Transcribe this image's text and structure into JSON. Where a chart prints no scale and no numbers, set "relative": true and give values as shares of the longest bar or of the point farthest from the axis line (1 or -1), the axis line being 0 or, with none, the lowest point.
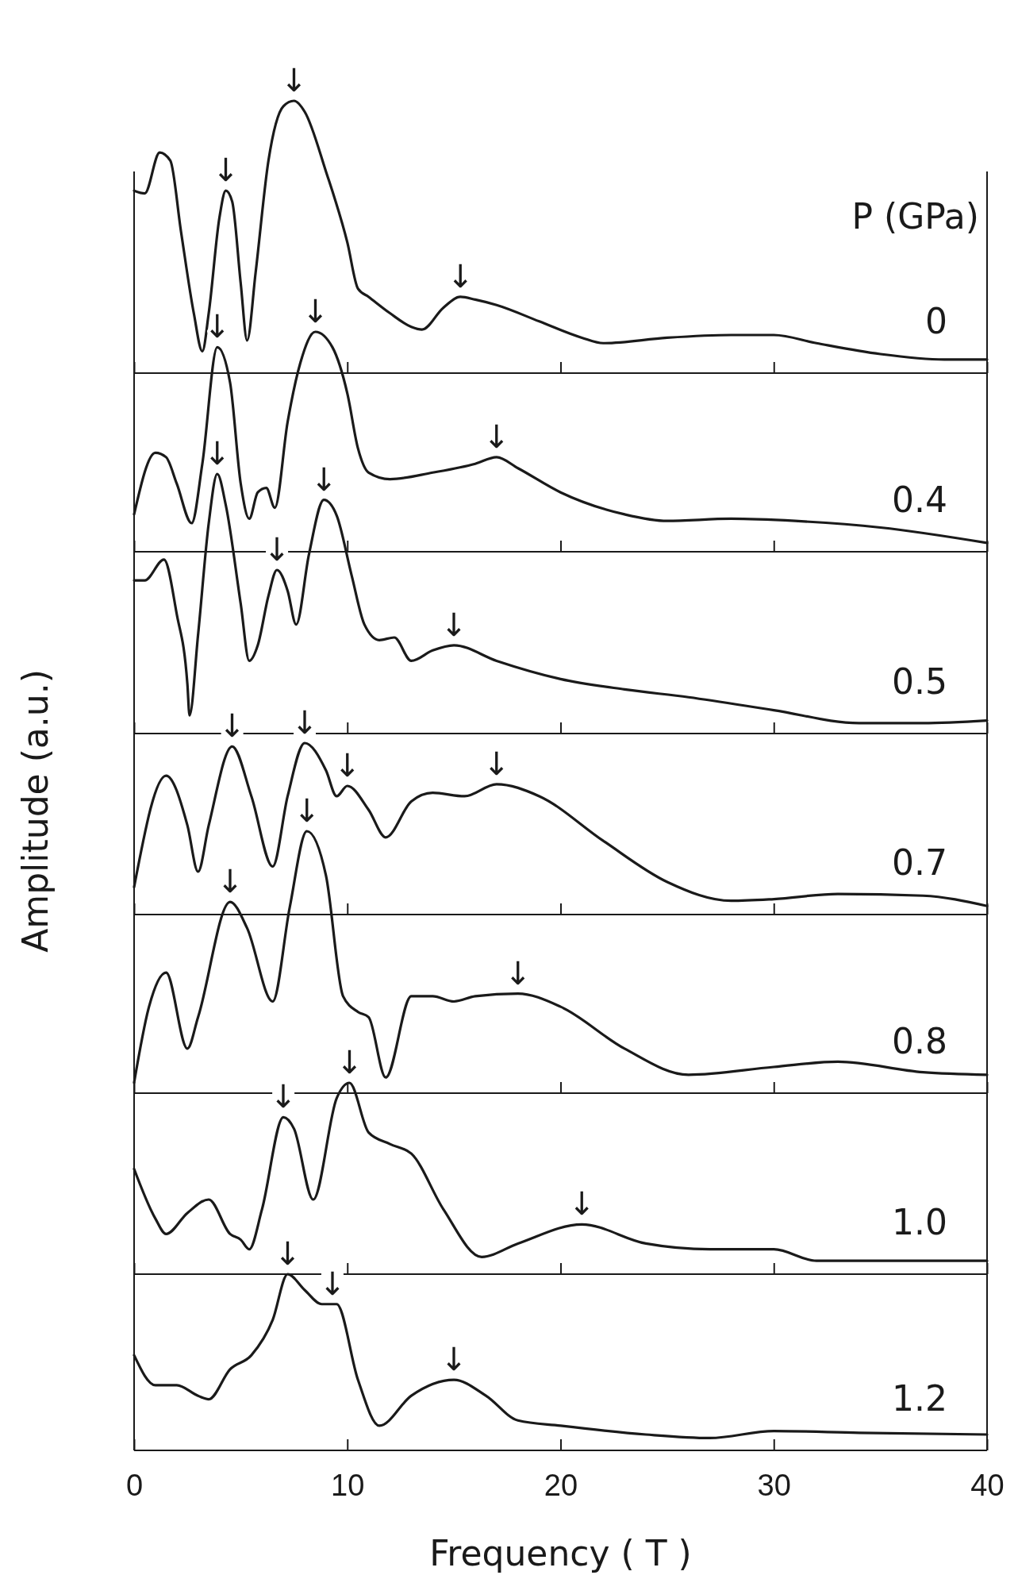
{
  "chart_data": [
    {
      "type": "line",
      "relative": true,
      "legend_title": "P (GPa)",
      "xlim": [
        0,
        40
      ],
      "xticks": [
        0,
        10,
        20,
        30,
        40
      ],
      "tick_labels": false,
      "marker": "none",
      "line_style": "solid",
      "series": [
        {
          "name": "0",
          "color": "#1a1a1a",
          "x": [
            0,
            0.5,
            1.2,
            1.7,
            2.2,
            2.8,
            3.2,
            3.5,
            4.0,
            4.3,
            4.6,
            5.0,
            5.3,
            5.7,
            6.3,
            7.0,
            7.5,
            8.0,
            9,
            10,
            10.5,
            11,
            12,
            13,
            13.5,
            14.5,
            15.3,
            16,
            17,
            19,
            21,
            22,
            25,
            28,
            30,
            32,
            35,
            38,
            40
          ],
          "values": [
            0.67,
            0.66,
            0.81,
            0.78,
            0.52,
            0.22,
            0.08,
            0.22,
            0.57,
            0.67,
            0.63,
            0.33,
            0.12,
            0.37,
            0.78,
            0.98,
            1,
            0.96,
            0.74,
            0.48,
            0.31,
            0.28,
            0.22,
            0.17,
            0.16,
            0.24,
            0.28,
            0.27,
            0.25,
            0.19,
            0.13,
            0.11,
            0.13,
            0.14,
            0.14,
            0.11,
            0.07,
            0.05,
            0.05
          ]
        }
      ],
      "annotations": [
        {
          "text": "↓",
          "x": 4.3,
          "y": 0.67
        },
        {
          "text": "↓",
          "x": 7.5,
          "y": 1
        },
        {
          "text": "↓",
          "x": 15.3,
          "y": 0.28
        }
      ]
    },
    {
      "type": "line",
      "relative": true,
      "xlim": [
        0,
        40
      ],
      "xticks": [
        0,
        10,
        20,
        30,
        40
      ],
      "tick_labels": false,
      "marker": "none",
      "line_style": "solid",
      "series": [
        {
          "name": "0.4",
          "color": "#1a1a1a",
          "x": [
            0,
            1,
            1.5,
            2,
            2.7,
            3.2,
            3.9,
            4.5,
            5.0,
            5.4,
            5.8,
            6.2,
            6.6,
            7.2,
            7.8,
            8.5,
            9.3,
            10,
            10.5,
            11,
            12,
            14,
            16,
            17,
            18,
            20,
            23,
            25,
            28,
            31,
            35,
            40
          ],
          "values": [
            0.17,
            0.45,
            0.43,
            0.31,
            0.13,
            0.4,
            0.93,
            0.77,
            0.31,
            0.15,
            0.27,
            0.29,
            0.2,
            0.59,
            0.86,
            1,
            0.93,
            0.72,
            0.47,
            0.36,
            0.33,
            0.36,
            0.4,
            0.43,
            0.38,
            0.27,
            0.17,
            0.14,
            0.15,
            0.14,
            0.11,
            0.04
          ]
        }
      ],
      "annotations": [
        {
          "text": "↓",
          "x": 3.9,
          "y": 0.93
        },
        {
          "text": "↓",
          "x": 8.5,
          "y": 1
        },
        {
          "text": "↓",
          "x": 17,
          "y": 0.43
        }
      ]
    },
    {
      "type": "line",
      "relative": true,
      "xlim": [
        0,
        40
      ],
      "xticks": [
        0,
        10,
        20,
        30,
        40
      ],
      "tick_labels": false,
      "marker": "none",
      "line_style": "solid",
      "series": [
        {
          "name": "0.5",
          "color": "#1a1a1a",
          "x": [
            0,
            0.5,
            1.4,
            2,
            2.5,
            2.6,
            3,
            3.5,
            3.9,
            4.3,
            5,
            5.4,
            5.8,
            6.3,
            6.7,
            7.2,
            7.6,
            8.2,
            8.9,
            9.5,
            10.2,
            10.8,
            11.5,
            12.2,
            13,
            14,
            15,
            17,
            20,
            23,
            26,
            30,
            34,
            37,
            40
          ],
          "values": [
            0.59,
            0.59,
            0.67,
            0.46,
            0.19,
            0.07,
            0.38,
            0.81,
            1,
            0.88,
            0.5,
            0.28,
            0.34,
            0.53,
            0.63,
            0.55,
            0.42,
            0.69,
            0.9,
            0.84,
            0.61,
            0.42,
            0.36,
            0.37,
            0.28,
            0.32,
            0.34,
            0.28,
            0.21,
            0.17,
            0.14,
            0.09,
            0.04,
            0.04,
            0.05
          ]
        }
      ],
      "annotations": [
        {
          "text": "↓",
          "x": 3.9,
          "y": 1
        },
        {
          "text": "↓",
          "x": 6.7,
          "y": 0.63
        },
        {
          "text": "↓",
          "x": 8.9,
          "y": 0.9
        },
        {
          "text": "↓",
          "x": 15,
          "y": 0.34
        }
      ]
    },
    {
      "type": "line",
      "relative": true,
      "ylabel": "Amplitude (a.u.)",
      "xlim": [
        0,
        40
      ],
      "xticks": [
        0,
        10,
        20,
        30,
        40
      ],
      "tick_labels": false,
      "marker": "none",
      "line_style": "solid",
      "series": [
        {
          "name": "0.7",
          "color": "#1a1a1a",
          "x": [
            0,
            1.5,
            2.5,
            3,
            3.5,
            4.6,
            5.5,
            6.5,
            7.2,
            8.0,
            9,
            9.5,
            10,
            11,
            11.8,
            13,
            14,
            15.5,
            17,
            19,
            22,
            25,
            28,
            30,
            33,
            37,
            40
          ],
          "values": [
            0.16,
            0.81,
            0.52,
            0.25,
            0.52,
            0.98,
            0.69,
            0.28,
            0.69,
            1,
            0.84,
            0.69,
            0.75,
            0.61,
            0.45,
            0.66,
            0.71,
            0.69,
            0.76,
            0.69,
            0.43,
            0.19,
            0.08,
            0.09,
            0.12,
            0.11,
            0.05
          ]
        }
      ],
      "annotations": [
        {
          "text": "↓",
          "x": 4.6,
          "y": 0.98
        },
        {
          "text": "↓",
          "x": 8,
          "y": 1
        },
        {
          "text": "↓",
          "x": 10,
          "y": 0.75
        },
        {
          "text": "↓",
          "x": 17,
          "y": 0.76
        }
      ]
    },
    {
      "type": "line",
      "relative": true,
      "xlim": [
        0,
        40
      ],
      "xticks": [
        0,
        10,
        20,
        30,
        40
      ],
      "tick_labels": false,
      "marker": "none",
      "line_style": "solid",
      "series": [
        {
          "name": "0.8",
          "color": "#1a1a1a",
          "x": [
            0,
            0.7,
            1.5,
            2.5,
            3,
            4.5,
            5.3,
            6.5,
            7.3,
            8.1,
            9,
            9.8,
            10.5,
            11,
            11.8,
            13,
            14,
            15,
            16,
            18,
            20,
            23,
            26,
            30,
            33,
            37,
            40
          ],
          "values": [
            0.04,
            0.33,
            0.46,
            0.17,
            0.29,
            0.73,
            0.63,
            0.35,
            0.71,
            1,
            0.83,
            0.37,
            0.31,
            0.29,
            0.06,
            0.37,
            0.37,
            0.35,
            0.37,
            0.38,
            0.33,
            0.17,
            0.07,
            0.1,
            0.12,
            0.08,
            0.07
          ]
        }
      ],
      "annotations": [
        {
          "text": "↓",
          "x": 4.5,
          "y": 0.73
        },
        {
          "text": "↓",
          "x": 8.1,
          "y": 1
        },
        {
          "text": "↓",
          "x": 18,
          "y": 0.38
        }
      ]
    },
    {
      "type": "line",
      "relative": true,
      "xlim": [
        0,
        40
      ],
      "xticks": [
        0,
        10,
        20,
        30,
        40
      ],
      "tick_labels": false,
      "marker": "none",
      "line_style": "solid",
      "series": [
        {
          "name": "1.0",
          "color": "#1a1a1a",
          "x": [
            0,
            1,
            1.5,
            2.5,
            3.5,
            4.5,
            5,
            5.4,
            6,
            7,
            7.5,
            8.4,
            9.5,
            10.1,
            11,
            12,
            13,
            14.5,
            16.3,
            18,
            21,
            24,
            27,
            30,
            32,
            36,
            40
          ],
          "values": [
            0.55,
            0.29,
            0.21,
            0.32,
            0.39,
            0.21,
            0.18,
            0.13,
            0.34,
            0.82,
            0.76,
            0.39,
            0.92,
            1,
            0.74,
            0.68,
            0.63,
            0.34,
            0.09,
            0.16,
            0.26,
            0.16,
            0.13,
            0.13,
            0.07,
            0.07,
            0.07
          ]
        }
      ],
      "annotations": [
        {
          "text": "↓",
          "x": 7,
          "y": 0.82
        },
        {
          "text": "↓",
          "x": 10.1,
          "y": 1
        },
        {
          "text": "↓",
          "x": 21,
          "y": 0.26
        }
      ]
    },
    {
      "type": "line",
      "relative": true,
      "xlabel": "Frequency ( T )",
      "xlim": [
        0,
        40
      ],
      "xticks": [
        0,
        10,
        20,
        30,
        40
      ],
      "tick_labels": "x",
      "marker": "none",
      "line_style": "solid",
      "series": [
        {
          "name": "1.2",
          "color": "#1a1a1a",
          "x": [
            0,
            1,
            2,
            3,
            3.5,
            4.5,
            5.5,
            6.5,
            7.2,
            8,
            8.8,
            9.5,
            10.5,
            11.5,
            13,
            15,
            16.5,
            18,
            20,
            24,
            27,
            30,
            34,
            40
          ],
          "values": [
            0.54,
            0.37,
            0.37,
            0.31,
            0.29,
            0.46,
            0.54,
            0.74,
            1,
            0.91,
            0.83,
            0.83,
            0.4,
            0.14,
            0.31,
            0.4,
            0.31,
            0.17,
            0.14,
            0.09,
            0.07,
            0.11,
            0.1,
            0.09
          ]
        }
      ],
      "annotations": [
        {
          "text": "↓",
          "x": 7.2,
          "y": 1
        },
        {
          "text": "↓",
          "x": 9.3,
          "y": 0.83
        },
        {
          "text": "↓",
          "x": 15,
          "y": 0.4
        }
      ]
    }
  ]
}
